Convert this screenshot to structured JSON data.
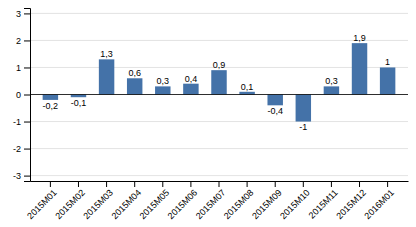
{
  "chart_data": {
    "type": "bar",
    "categories": [
      "2015M01",
      "2015M02",
      "2015M03",
      "2015M04",
      "2015M05",
      "2015M06",
      "2015M07",
      "2015M08",
      "2015M09",
      "2015M10",
      "2015M11",
      "2015M12",
      "2016M01"
    ],
    "values": [
      -0.2,
      -0.1,
      1.3,
      0.6,
      0.3,
      0.4,
      0.9,
      0.1,
      -0.4,
      -1.0,
      0.3,
      1.9,
      1.0
    ],
    "value_labels": [
      "-0,2",
      "-0,1",
      "1,3",
      "0,6",
      "0,3",
      "0,4",
      "0,9",
      "0,1",
      "-0,4",
      "-1",
      "0,3",
      "1,9",
      "1"
    ],
    "data_labels": true,
    "color": "#4472a8",
    "ylim": [
      -3.2,
      3.2
    ],
    "yticks": [
      -3,
      -2,
      -1,
      0,
      1,
      2,
      3
    ],
    "grid": true
  }
}
